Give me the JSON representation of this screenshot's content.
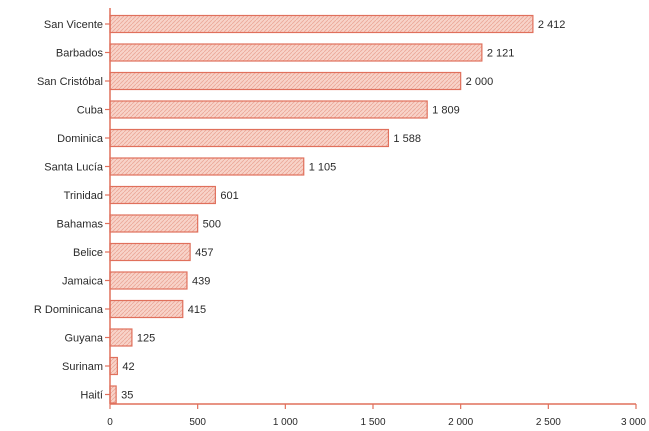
{
  "chart_data": {
    "type": "bar",
    "orientation": "horizontal",
    "title": "",
    "xlabel": "",
    "ylabel": "",
    "categories": [
      "San Vicente",
      "Barbados",
      "San Cristóbal",
      "Cuba",
      "Dominica",
      "Santa Lucía",
      "Trinidad",
      "Bahamas",
      "Belice",
      "Jamaica",
      "R Dominicana",
      "Guyana",
      "Surinam",
      "Haití"
    ],
    "values": [
      2412,
      2121,
      2000,
      1809,
      1588,
      1105,
      601,
      500,
      457,
      439,
      415,
      125,
      42,
      35
    ],
    "value_labels": [
      "2 412",
      "2 121",
      "2 000",
      "1 809",
      "1 588",
      "1 105",
      "601",
      "500",
      "457",
      "439",
      "415",
      "125",
      "42",
      "35"
    ],
    "xlim": [
      0,
      3000
    ],
    "xticks": [
      0,
      500,
      1000,
      1500,
      2000,
      2500,
      3000
    ],
    "xtick_labels": [
      "0",
      "500",
      "1 000",
      "1 500",
      "2 000",
      "2 500",
      "3 000"
    ],
    "grid": false,
    "colors": {
      "bar_stroke": "#e0705c",
      "bar_fill": "#f6c7bb",
      "axis": "#e0705c"
    }
  }
}
